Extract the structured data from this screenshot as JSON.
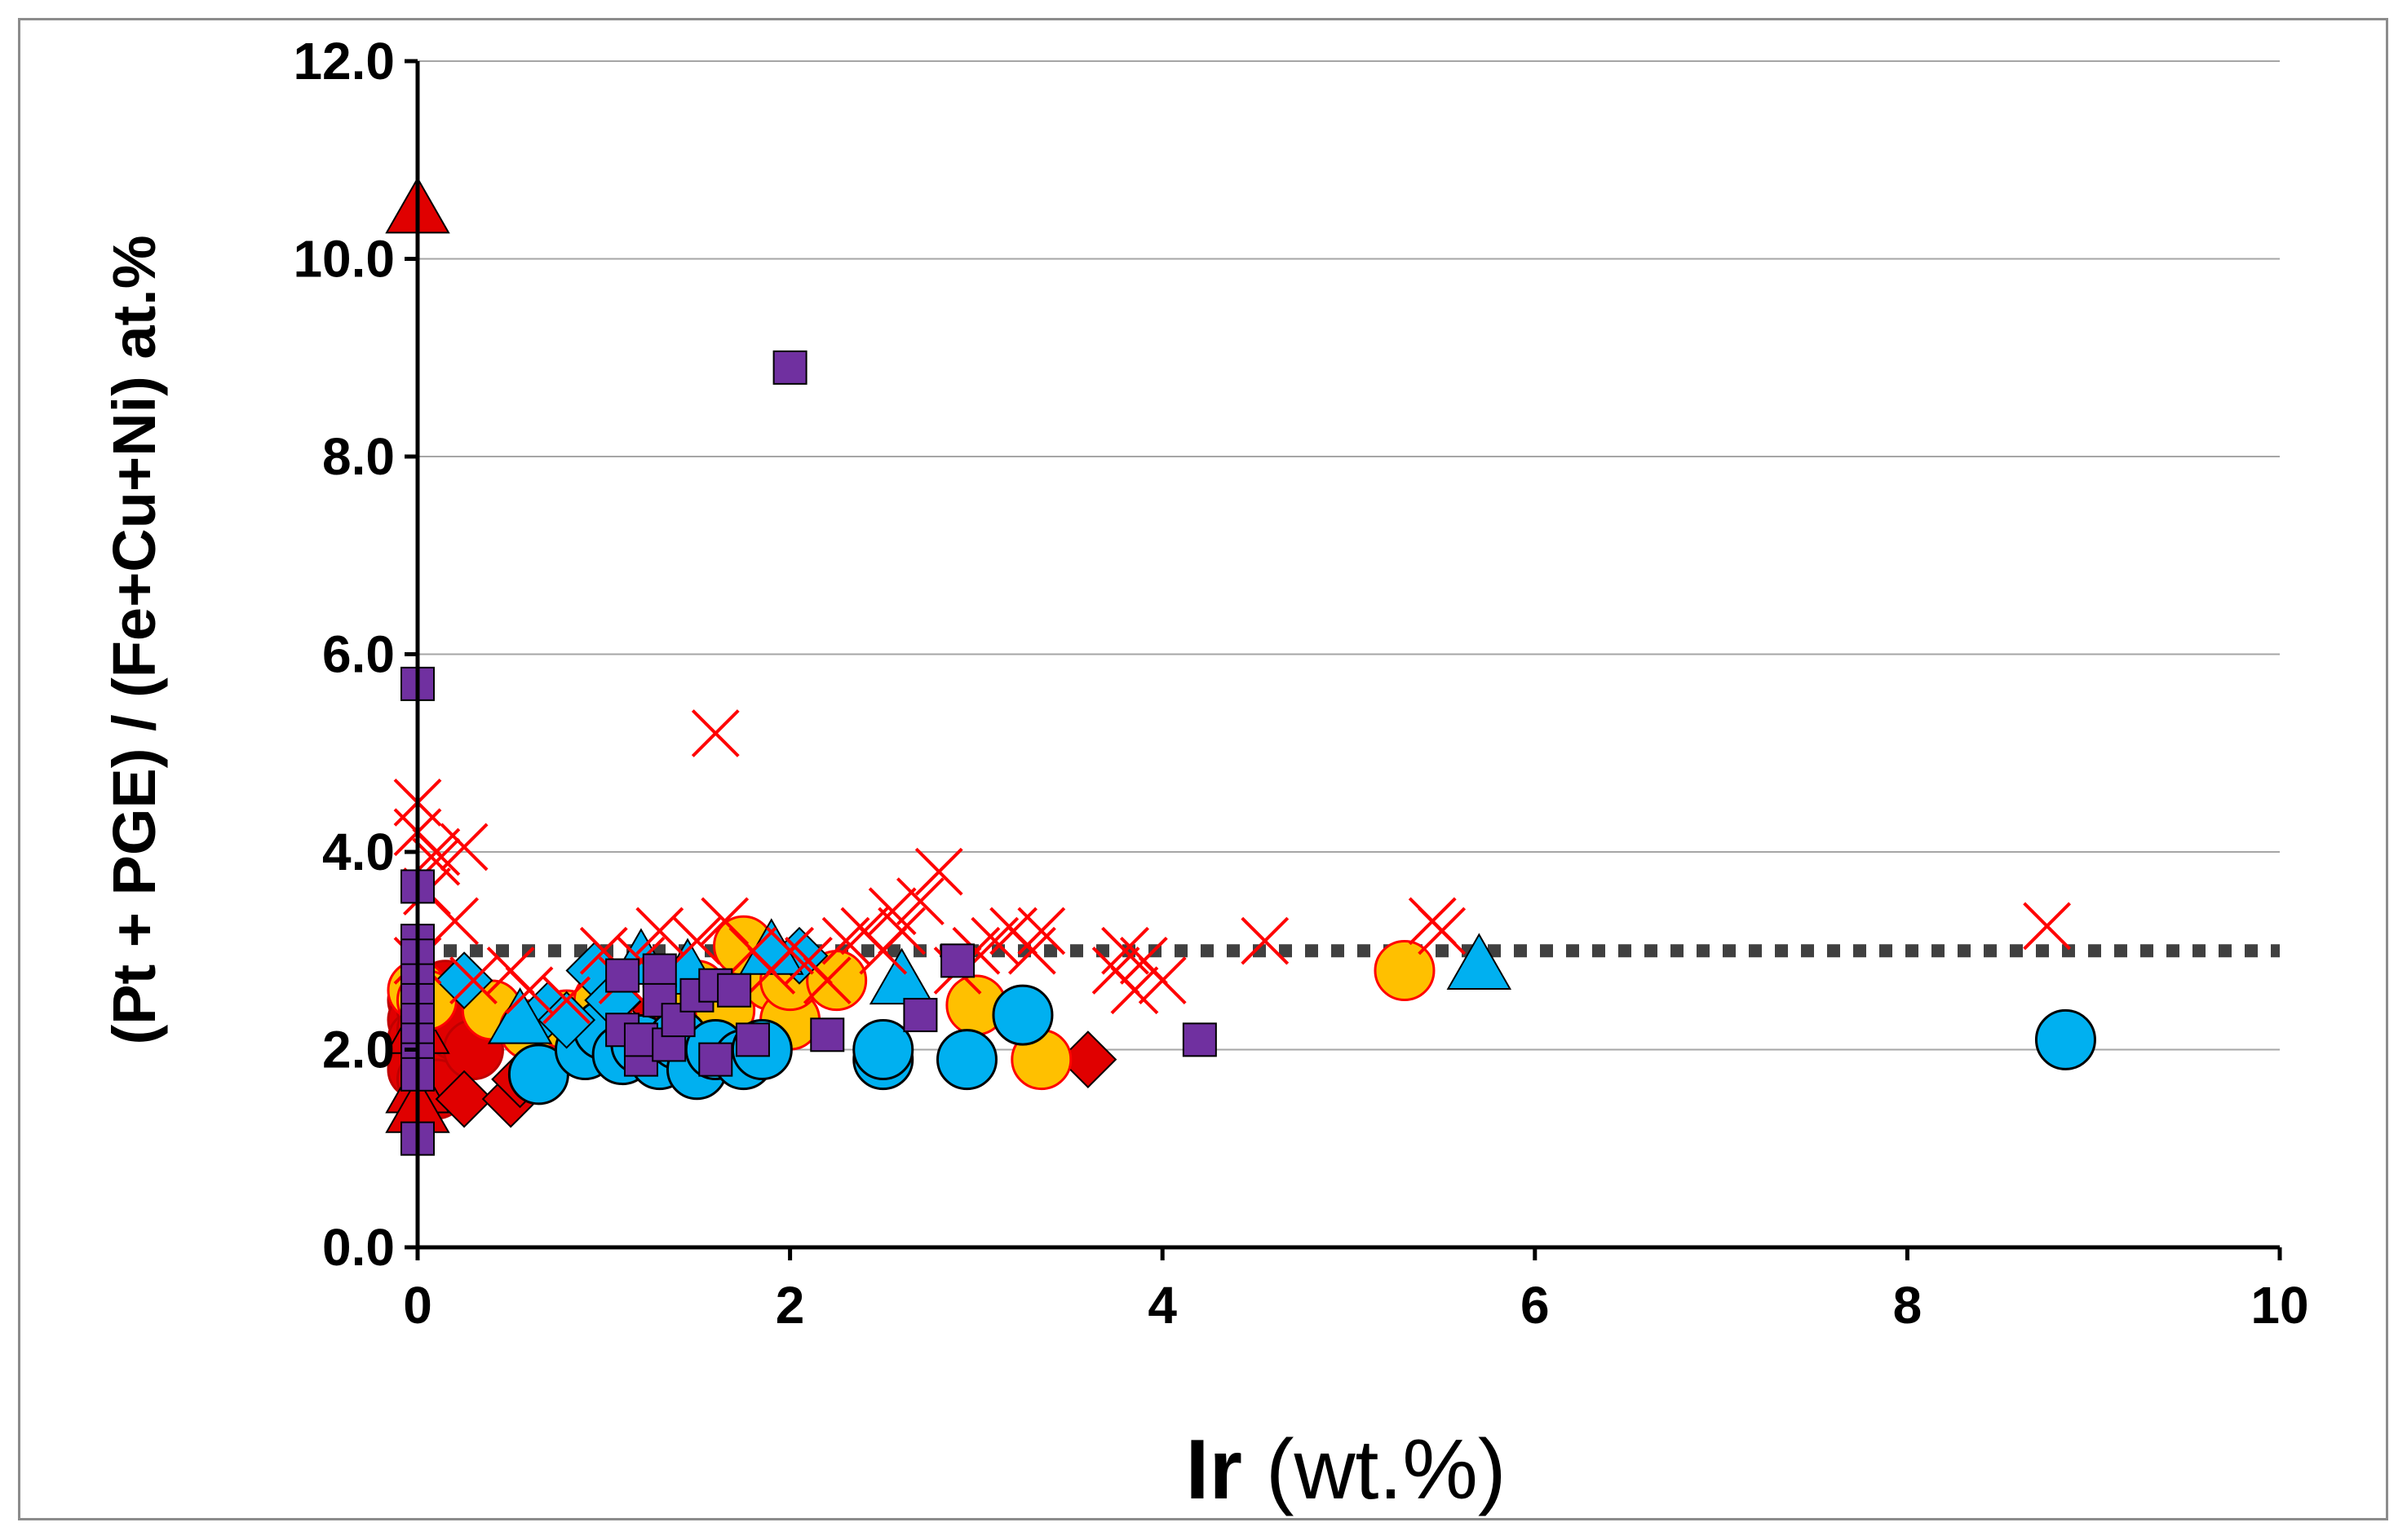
{
  "chart_data": {
    "type": "scatter",
    "title": "",
    "xlabel": {
      "bold": "Ir",
      "rest": " (wt.%)"
    },
    "ylabel": "(Pt + PGE) / (Fe+Cu+Ni)   at.%",
    "xlim": [
      0,
      10
    ],
    "ylim": [
      0,
      12
    ],
    "x_ticks": [
      0,
      2,
      4,
      6,
      8,
      10
    ],
    "x_tick_labels": [
      "0",
      "2",
      "4",
      "6",
      "8",
      "10"
    ],
    "y_ticks": [
      0,
      2,
      4,
      6,
      8,
      10,
      12
    ],
    "y_tick_labels": [
      "0.0",
      "2.0",
      "4.0",
      "6.0",
      "8.0",
      "10.0",
      "12.0"
    ],
    "grid": "horizontal",
    "reference_line": {
      "y": 3.0,
      "style": "dotted",
      "color": "#404040"
    },
    "series": [
      {
        "name": "red crosses",
        "marker": "x",
        "color": "#ff0000",
        "points": [
          [
            0,
            4.5
          ],
          [
            0,
            4.2
          ],
          [
            0.1,
            4.0
          ],
          [
            0.25,
            4.05
          ],
          [
            0.1,
            3.9
          ],
          [
            0.05,
            3.6
          ],
          [
            0.2,
            3.3
          ],
          [
            0,
            2.9
          ],
          [
            0.3,
            2.7
          ],
          [
            0.5,
            2.8
          ],
          [
            0.6,
            2.6
          ],
          [
            0.8,
            2.5
          ],
          [
            1.0,
            3.0
          ],
          [
            1.1,
            2.7
          ],
          [
            1.2,
            2.9
          ],
          [
            1.3,
            3.2
          ],
          [
            1.5,
            3.1
          ],
          [
            1.6,
            5.2
          ],
          [
            1.65,
            3.3
          ],
          [
            1.8,
            3.0
          ],
          [
            1.9,
            2.8
          ],
          [
            2.0,
            3.0
          ],
          [
            2.1,
            2.9
          ],
          [
            2.2,
            2.7
          ],
          [
            2.3,
            3.1
          ],
          [
            2.4,
            3.2
          ],
          [
            2.5,
            3.0
          ],
          [
            2.55,
            3.4
          ],
          [
            2.6,
            3.2
          ],
          [
            2.7,
            3.5
          ],
          [
            2.8,
            3.8
          ],
          [
            2.9,
            2.8
          ],
          [
            3.0,
            3.0
          ],
          [
            3.1,
            3.1
          ],
          [
            3.2,
            3.2
          ],
          [
            3.3,
            3.0
          ],
          [
            3.35,
            3.2
          ],
          [
            3.75,
            2.8
          ],
          [
            3.8,
            3.0
          ],
          [
            3.85,
            2.6
          ],
          [
            3.9,
            2.9
          ],
          [
            4.0,
            2.7
          ],
          [
            4.55,
            3.1
          ],
          [
            5.45,
            3.3
          ],
          [
            5.5,
            3.2
          ],
          [
            8.75,
            3.25
          ]
        ]
      },
      {
        "name": "red circles",
        "marker": "circle",
        "color": "#e00000",
        "points": [
          [
            0,
            2.5
          ],
          [
            0,
            2.3
          ],
          [
            0,
            2.1
          ],
          [
            0,
            1.9
          ],
          [
            0,
            1.8
          ],
          [
            0.05,
            2.4
          ],
          [
            0.05,
            2.2
          ],
          [
            0.1,
            2.0
          ],
          [
            0.05,
            1.7
          ],
          [
            0.15,
            2.6
          ],
          [
            0.1,
            1.6
          ],
          [
            0.3,
            2.4
          ],
          [
            0.2,
            2.2
          ],
          [
            0.3,
            2.0
          ]
        ]
      },
      {
        "name": "red triangles",
        "marker": "triangle",
        "color": "#e00000",
        "points": [
          [
            0,
            10.5
          ],
          [
            0,
            2.2
          ],
          [
            0,
            1.6
          ],
          [
            0,
            1.4
          ]
        ]
      },
      {
        "name": "red diamonds",
        "marker": "diamond",
        "color": "#e00000",
        "points": [
          [
            0.25,
            1.5
          ],
          [
            0.5,
            1.5
          ],
          [
            0.55,
            1.7
          ],
          [
            1.3,
            2.4
          ],
          [
            1.45,
            2.5
          ],
          [
            3.6,
            1.9
          ]
        ]
      },
      {
        "name": "yellow circles",
        "marker": "circle",
        "color": "#ffc000",
        "points": [
          [
            0,
            2.6
          ],
          [
            0.05,
            2.5
          ],
          [
            0.4,
            2.4
          ],
          [
            0.6,
            2.2
          ],
          [
            0.8,
            2.3
          ],
          [
            1.0,
            2.5
          ],
          [
            1.2,
            2.0
          ],
          [
            1.5,
            2.6
          ],
          [
            1.65,
            2.4
          ],
          [
            1.75,
            3.05
          ],
          [
            1.9,
            2.7
          ],
          [
            2.0,
            2.3
          ],
          [
            2.0,
            2.7
          ],
          [
            2.25,
            2.7
          ],
          [
            3.0,
            2.45
          ],
          [
            3.35,
            1.9
          ],
          [
            5.3,
            2.8
          ]
        ]
      },
      {
        "name": "blue circles",
        "marker": "circle",
        "color": "#00b0f0",
        "points": [
          [
            0.65,
            1.75
          ],
          [
            0.9,
            2.0
          ],
          [
            1.0,
            2.2
          ],
          [
            1.1,
            1.95
          ],
          [
            1.2,
            2.05
          ],
          [
            1.3,
            1.9
          ],
          [
            1.4,
            2.1
          ],
          [
            1.5,
            1.8
          ],
          [
            1.6,
            2.0
          ],
          [
            1.75,
            1.9
          ],
          [
            1.85,
            2.0
          ],
          [
            2.5,
            1.9
          ],
          [
            2.5,
            2.0
          ],
          [
            2.95,
            1.9
          ],
          [
            3.25,
            2.35
          ],
          [
            8.85,
            2.1
          ]
        ]
      },
      {
        "name": "blue triangles",
        "marker": "triangle",
        "color": "#00b0f0",
        "points": [
          [
            0.55,
            2.3
          ],
          [
            1.2,
            2.9
          ],
          [
            1.45,
            2.8
          ],
          [
            1.9,
            3.0
          ],
          [
            2.6,
            2.7
          ],
          [
            5.7,
            2.85
          ]
        ]
      },
      {
        "name": "blue diamonds",
        "marker": "diamond",
        "color": "#00b0f0",
        "points": [
          [
            0.25,
            2.7
          ],
          [
            0.7,
            2.4
          ],
          [
            0.8,
            2.3
          ],
          [
            0.95,
            2.8
          ],
          [
            1.05,
            2.5
          ],
          [
            2.05,
            2.95
          ]
        ]
      },
      {
        "name": "purple squares",
        "marker": "square",
        "color": "#7030a0",
        "points": [
          [
            0,
            5.7
          ],
          [
            0,
            3.65
          ],
          [
            0,
            3.1
          ],
          [
            0,
            2.95
          ],
          [
            0,
            2.7
          ],
          [
            0,
            2.5
          ],
          [
            0,
            2.3
          ],
          [
            0,
            2.1
          ],
          [
            0,
            1.9
          ],
          [
            0,
            1.75
          ],
          [
            0,
            1.1
          ],
          [
            1.1,
            2.75
          ],
          [
            1.1,
            2.2
          ],
          [
            1.2,
            1.9
          ],
          [
            1.2,
            2.1
          ],
          [
            1.3,
            2.8
          ],
          [
            1.3,
            2.5
          ],
          [
            1.35,
            2.05
          ],
          [
            1.4,
            2.3
          ],
          [
            1.5,
            2.55
          ],
          [
            1.6,
            2.65
          ],
          [
            1.6,
            1.9
          ],
          [
            1.7,
            2.6
          ],
          [
            1.8,
            2.1
          ],
          [
            2.0,
            8.9
          ],
          [
            2.2,
            2.15
          ],
          [
            2.7,
            2.35
          ],
          [
            2.9,
            2.9
          ],
          [
            4.2,
            2.1
          ]
        ]
      }
    ]
  }
}
